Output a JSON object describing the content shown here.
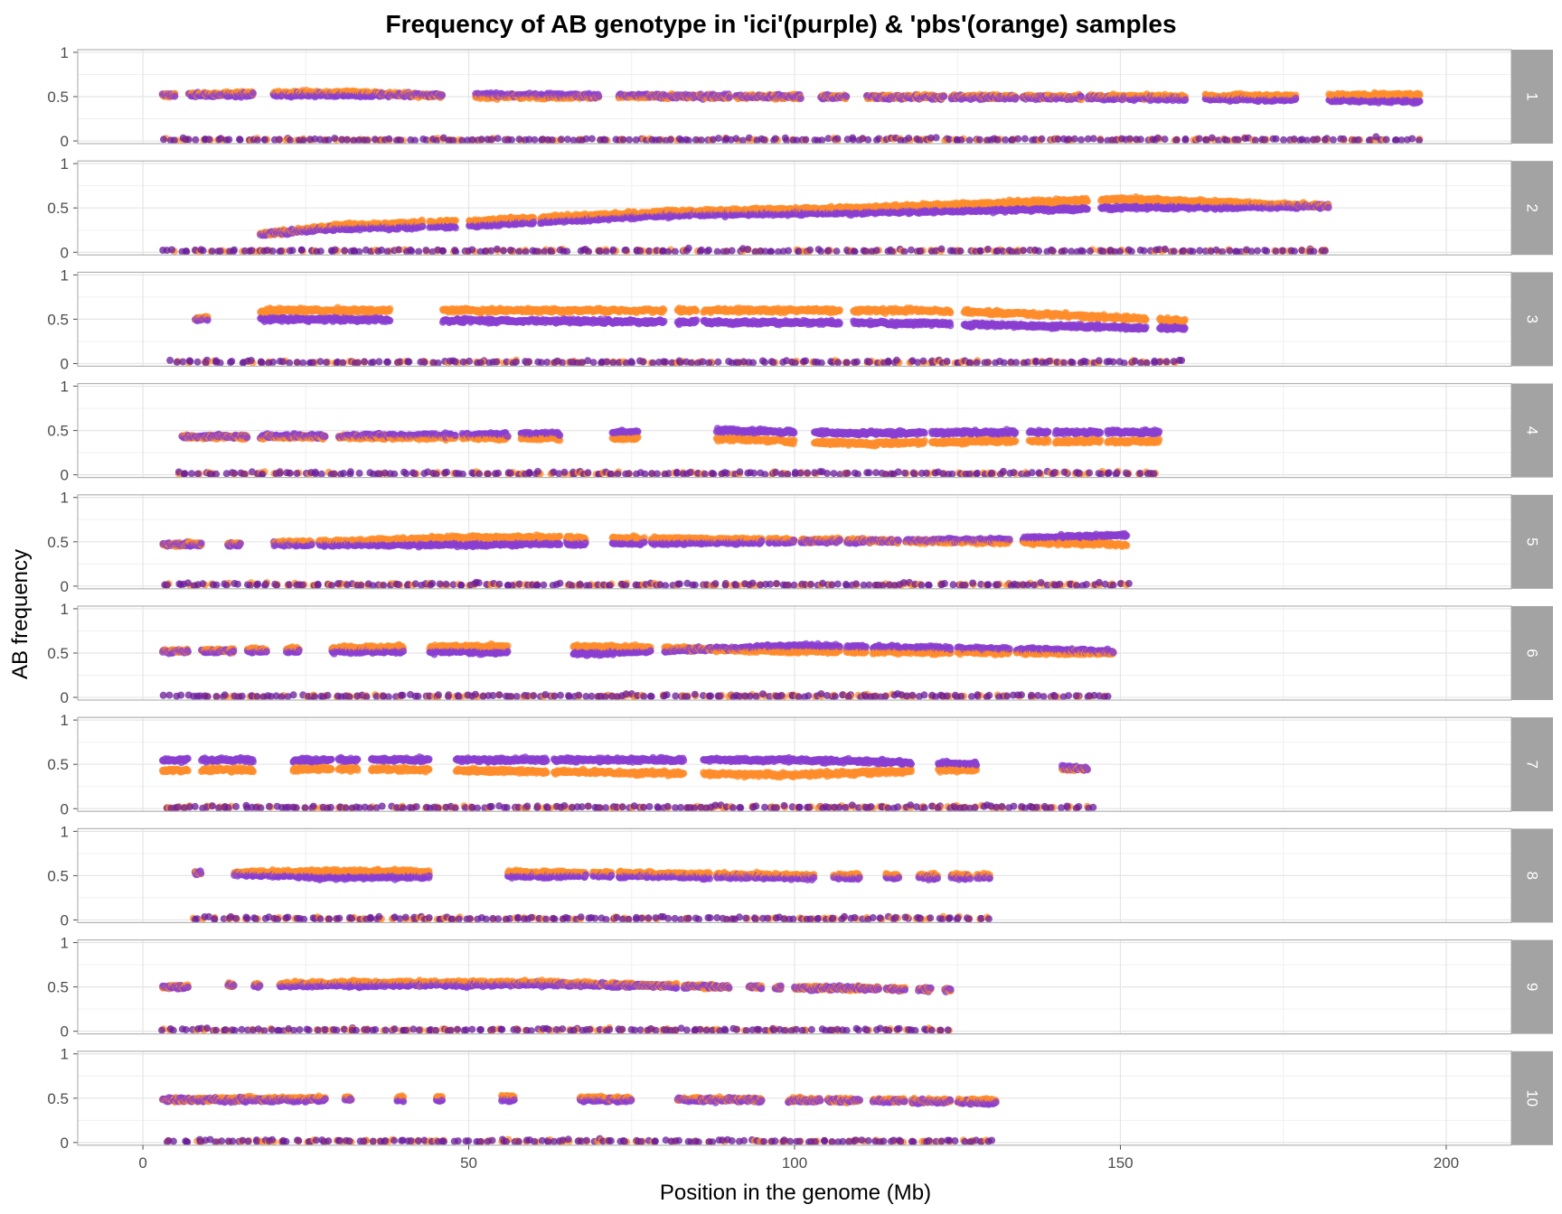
{
  "chart_data": {
    "type": "scatter",
    "title": "Frequency of AB genotype in 'ici'(purple) & 'pbs'(orange) samples",
    "xlabel": "Position in the genome (Mb)",
    "ylabel": "AB frequency",
    "xlim": [
      -10,
      210
    ],
    "ylim": [
      -0.03,
      1.03
    ],
    "x_ticks": [
      0,
      50,
      100,
      150,
      200
    ],
    "y_ticks": [
      0,
      0.5,
      1
    ],
    "y_tick_labels": [
      "0",
      "0.5",
      "1"
    ],
    "grid": true,
    "facet": "rows",
    "colors": {
      "ici": "#8a3fd1",
      "pbs": "#ff8c2a",
      "low_points": "#6a1b9a",
      "strip_bg": "#a3a3a3",
      "panel_border": "#b3b3b3",
      "grid": "#e5e5e5"
    },
    "series": [
      {
        "key": "ici",
        "color": "#8a3fd1"
      },
      {
        "key": "pbs",
        "color": "#ff8c2a"
      }
    ],
    "panels": [
      {
        "label": "1",
        "range": [
          3,
          196
        ],
        "segments": [
          [
            3,
            5
          ],
          [
            7,
            17
          ],
          [
            20,
            33
          ],
          [
            33,
            46
          ],
          [
            51,
            70
          ],
          [
            73,
            80
          ],
          [
            80,
            90
          ],
          [
            91,
            101
          ],
          [
            104,
            108
          ],
          [
            111,
            123
          ],
          [
            124,
            134
          ],
          [
            135,
            144
          ],
          [
            145,
            153
          ],
          [
            153,
            160
          ],
          [
            163,
            177
          ],
          [
            182,
            196
          ]
        ],
        "pbs": [
          [
            3,
            0.52
          ],
          [
            30,
            0.55
          ],
          [
            50,
            0.5
          ],
          [
            100,
            0.5
          ],
          [
            160,
            0.5
          ],
          [
            196,
            0.52
          ]
        ],
        "ici": [
          [
            3,
            0.52
          ],
          [
            30,
            0.52
          ],
          [
            50,
            0.52
          ],
          [
            100,
            0.5
          ],
          [
            160,
            0.48
          ],
          [
            196,
            0.45
          ]
        ]
      },
      {
        "label": "2",
        "range": [
          3,
          182
        ],
        "segments": [
          [
            18,
            21
          ],
          [
            21,
            33
          ],
          [
            33,
            43
          ],
          [
            44,
            48
          ],
          [
            50,
            60
          ],
          [
            61,
            70
          ],
          [
            70,
            84
          ],
          [
            84,
            118
          ],
          [
            118,
            135
          ],
          [
            135,
            145
          ],
          [
            147,
            178
          ],
          [
            178,
            182
          ]
        ],
        "pbs": [
          [
            18,
            0.2
          ],
          [
            30,
            0.3
          ],
          [
            50,
            0.35
          ],
          [
            80,
            0.45
          ],
          [
            110,
            0.5
          ],
          [
            150,
            0.6
          ],
          [
            182,
            0.52
          ]
        ],
        "ici": [
          [
            18,
            0.2
          ],
          [
            30,
            0.27
          ],
          [
            50,
            0.3
          ],
          [
            80,
            0.42
          ],
          [
            110,
            0.45
          ],
          [
            150,
            0.5
          ],
          [
            182,
            0.52
          ]
        ]
      },
      {
        "label": "3",
        "range": [
          4,
          160
        ],
        "segments": [
          [
            8,
            10
          ],
          [
            18,
            38
          ],
          [
            46,
            57
          ],
          [
            57,
            80
          ],
          [
            82,
            85
          ],
          [
            86,
            107
          ],
          [
            109,
            124
          ],
          [
            126,
            131
          ],
          [
            131,
            138
          ],
          [
            138,
            154
          ],
          [
            156,
            160
          ]
        ],
        "pbs": [
          [
            8,
            0.5
          ],
          [
            20,
            0.6
          ],
          [
            80,
            0.6
          ],
          [
            120,
            0.6
          ],
          [
            140,
            0.55
          ],
          [
            160,
            0.48
          ]
        ],
        "ici": [
          [
            8,
            0.5
          ],
          [
            20,
            0.5
          ],
          [
            80,
            0.47
          ],
          [
            120,
            0.45
          ],
          [
            140,
            0.42
          ],
          [
            160,
            0.4
          ]
        ]
      },
      {
        "label": "4",
        "range": [
          5,
          156
        ],
        "segments": [
          [
            6,
            16
          ],
          [
            18,
            28
          ],
          [
            30,
            40
          ],
          [
            40,
            48
          ],
          [
            49,
            56
          ],
          [
            58,
            64
          ],
          [
            72,
            76
          ],
          [
            88,
            100
          ],
          [
            103,
            120
          ],
          [
            121,
            134
          ],
          [
            136,
            139
          ],
          [
            140,
            147
          ],
          [
            148,
            156
          ]
        ],
        "pbs": [
          [
            6,
            0.43
          ],
          [
            50,
            0.42
          ],
          [
            90,
            0.4
          ],
          [
            110,
            0.35
          ],
          [
            130,
            0.38
          ],
          [
            156,
            0.38
          ]
        ],
        "ici": [
          [
            6,
            0.43
          ],
          [
            50,
            0.45
          ],
          [
            90,
            0.5
          ],
          [
            110,
            0.47
          ],
          [
            130,
            0.48
          ],
          [
            156,
            0.48
          ]
        ]
      },
      {
        "label": "5",
        "range": [
          3,
          151
        ],
        "segments": [
          [
            3,
            9
          ],
          [
            13,
            15
          ],
          [
            20,
            26
          ],
          [
            27,
            60
          ],
          [
            60,
            64
          ],
          [
            65,
            68
          ],
          [
            72,
            77
          ],
          [
            78,
            91
          ],
          [
            91,
            95
          ],
          [
            96,
            100
          ],
          [
            101,
            107
          ],
          [
            108,
            116
          ],
          [
            117,
            133
          ],
          [
            135,
            151
          ]
        ],
        "pbs": [
          [
            3,
            0.47
          ],
          [
            30,
            0.5
          ],
          [
            50,
            0.55
          ],
          [
            100,
            0.52
          ],
          [
            130,
            0.5
          ],
          [
            151,
            0.47
          ]
        ],
        "ici": [
          [
            3,
            0.47
          ],
          [
            30,
            0.47
          ],
          [
            50,
            0.47
          ],
          [
            100,
            0.5
          ],
          [
            130,
            0.52
          ],
          [
            151,
            0.58
          ]
        ]
      },
      {
        "label": "6",
        "range": [
          3,
          149
        ],
        "segments": [
          [
            3,
            7
          ],
          [
            9,
            14
          ],
          [
            16,
            19
          ],
          [
            22,
            24
          ],
          [
            29,
            33
          ],
          [
            33,
            40
          ],
          [
            44,
            56
          ],
          [
            66,
            78
          ],
          [
            80,
            82
          ],
          [
            82,
            107
          ],
          [
            108,
            111
          ],
          [
            112,
            124
          ],
          [
            125,
            133
          ],
          [
            134,
            149
          ]
        ],
        "pbs": [
          [
            3,
            0.52
          ],
          [
            40,
            0.57
          ],
          [
            70,
            0.57
          ],
          [
            100,
            0.52
          ],
          [
            149,
            0.5
          ]
        ],
        "ici": [
          [
            3,
            0.52
          ],
          [
            40,
            0.52
          ],
          [
            70,
            0.5
          ],
          [
            100,
            0.58
          ],
          [
            149,
            0.52
          ]
        ]
      },
      {
        "label": "7",
        "range": [
          3,
          146
        ],
        "segments": [
          [
            3,
            7
          ],
          [
            9,
            17
          ],
          [
            23,
            29
          ],
          [
            30,
            33
          ],
          [
            35,
            44
          ],
          [
            48,
            62
          ],
          [
            63,
            83
          ],
          [
            86,
            118
          ],
          [
            122,
            128
          ],
          [
            141,
            144
          ],
          [
            144,
            145
          ]
        ],
        "pbs": [
          [
            3,
            0.43
          ],
          [
            30,
            0.45
          ],
          [
            60,
            0.42
          ],
          [
            100,
            0.38
          ],
          [
            130,
            0.45
          ],
          [
            145,
            0.45
          ]
        ],
        "ici": [
          [
            3,
            0.55
          ],
          [
            30,
            0.55
          ],
          [
            60,
            0.55
          ],
          [
            100,
            0.55
          ],
          [
            130,
            0.5
          ],
          [
            145,
            0.45
          ]
        ]
      },
      {
        "label": "8",
        "range": [
          7,
          130
        ],
        "segments": [
          [
            8,
            9
          ],
          [
            14,
            28
          ],
          [
            28,
            44
          ],
          [
            56,
            68
          ],
          [
            69,
            72
          ],
          [
            73,
            77
          ],
          [
            77,
            87
          ],
          [
            88,
            103
          ],
          [
            106,
            110
          ],
          [
            114,
            116
          ],
          [
            119,
            122
          ],
          [
            124,
            127
          ],
          [
            128,
            130
          ]
        ],
        "pbs": [
          [
            8,
            0.53
          ],
          [
            30,
            0.55
          ],
          [
            70,
            0.53
          ],
          [
            100,
            0.5
          ],
          [
            130,
            0.5
          ]
        ],
        "ici": [
          [
            8,
            0.53
          ],
          [
            30,
            0.48
          ],
          [
            70,
            0.5
          ],
          [
            100,
            0.48
          ],
          [
            130,
            0.48
          ]
        ]
      },
      {
        "label": "9",
        "range": [
          3,
          124
        ],
        "segments": [
          [
            3,
            7
          ],
          [
            13,
            14
          ],
          [
            17,
            18
          ],
          [
            21,
            28
          ],
          [
            28,
            34
          ],
          [
            32,
            82
          ],
          [
            83,
            90
          ],
          [
            93,
            95
          ],
          [
            97,
            98
          ],
          [
            100,
            113
          ],
          [
            114,
            117
          ],
          [
            119,
            121
          ],
          [
            123,
            124
          ]
        ],
        "pbs": [
          [
            3,
            0.5
          ],
          [
            30,
            0.55
          ],
          [
            60,
            0.55
          ],
          [
            90,
            0.5
          ],
          [
            124,
            0.47
          ]
        ],
        "ici": [
          [
            3,
            0.5
          ],
          [
            30,
            0.52
          ],
          [
            60,
            0.53
          ],
          [
            90,
            0.5
          ],
          [
            124,
            0.47
          ]
        ]
      },
      {
        "label": "10",
        "range": [
          3,
          131
        ],
        "segments": [
          [
            3,
            9
          ],
          [
            9,
            28
          ],
          [
            31,
            32
          ],
          [
            39,
            40
          ],
          [
            45,
            46
          ],
          [
            55,
            57
          ],
          [
            67,
            75
          ],
          [
            82,
            95
          ],
          [
            99,
            104
          ],
          [
            105,
            110
          ],
          [
            112,
            117
          ],
          [
            118,
            124
          ],
          [
            125,
            131
          ]
        ],
        "pbs": [
          [
            3,
            0.48
          ],
          [
            55,
            0.52
          ],
          [
            70,
            0.5
          ],
          [
            100,
            0.48
          ],
          [
            131,
            0.47
          ]
        ],
        "ici": [
          [
            3,
            0.48
          ],
          [
            55,
            0.48
          ],
          [
            70,
            0.48
          ],
          [
            100,
            0.48
          ],
          [
            131,
            0.45
          ]
        ]
      }
    ]
  }
}
